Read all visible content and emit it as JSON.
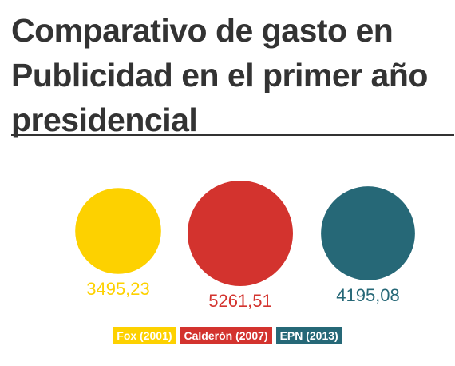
{
  "title": "Comparativo de gasto en Publicidad en el primer año presidencial",
  "colors": {
    "fox": "#FDD100",
    "calderon": "#D3332E",
    "epn": "#266877",
    "title": "#333333",
    "background": "#ffffff"
  },
  "chart_data": {
    "type": "bubble",
    "title": "Comparativo de gasto en Publicidad en el primer año presidencial",
    "categories": [
      "Fox (2001)",
      "Calderón (2007)",
      "EPN (2013)"
    ],
    "values": [
      3495.23,
      5261.51,
      4195.08
    ],
    "value_labels": [
      "3495,23",
      "5261,51",
      "4195,08"
    ],
    "series_colors": [
      "#FDD100",
      "#D3332E",
      "#266877"
    ],
    "legend": [
      "Fox (2001)",
      "Calderón (2007)",
      "EPN (2013)"
    ],
    "legend_position": "bottom-center"
  }
}
